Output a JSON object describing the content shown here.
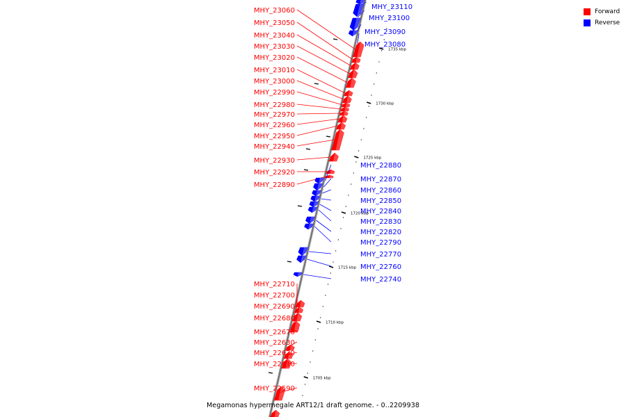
{
  "diagram": {
    "caption": "Megamonas hypermegale ART12/1 draft genome. - 0..2209938",
    "legend": [
      {
        "label": "Forward",
        "color": "#ff0000"
      },
      {
        "label": "Reverse",
        "color": "#0000ff"
      }
    ],
    "ruler_labels": [
      "1735 kbp",
      "1730 kbp",
      "1725 kbp",
      "1720 kbp",
      "1715 kbp",
      "1710 kbp",
      "1705 kbp"
    ],
    "forward_genes": [
      "MHY_23060",
      "MHY_23050",
      "MHY_23040",
      "MHY_23030",
      "MHY_23020",
      "MHY_23010",
      "MHY_23000",
      "MHY_22990",
      "MHY_22980",
      "MHY_22970",
      "MHY_22960",
      "MHY_22950",
      "MHY_22940",
      "MHY_22930",
      "MHY_22920",
      "MHY_22890",
      "MHY_22710",
      "MHY_22700",
      "MHY_22690",
      "MHY_22680",
      "MHY_22670",
      "MHY_22630",
      "MHY_22620",
      "MHY_22610",
      "MHY_22590"
    ],
    "reverse_genes": [
      "MHY_23110",
      "MHY_23100",
      "MHY_23090",
      "MHY_23080",
      "MHY_22880",
      "MHY_22870",
      "MHY_22860",
      "MHY_22850",
      "MHY_22840",
      "MHY_22830",
      "MHY_22820",
      "MHY_22790",
      "MHY_22770",
      "MHY_22760",
      "MHY_22740"
    ]
  }
}
